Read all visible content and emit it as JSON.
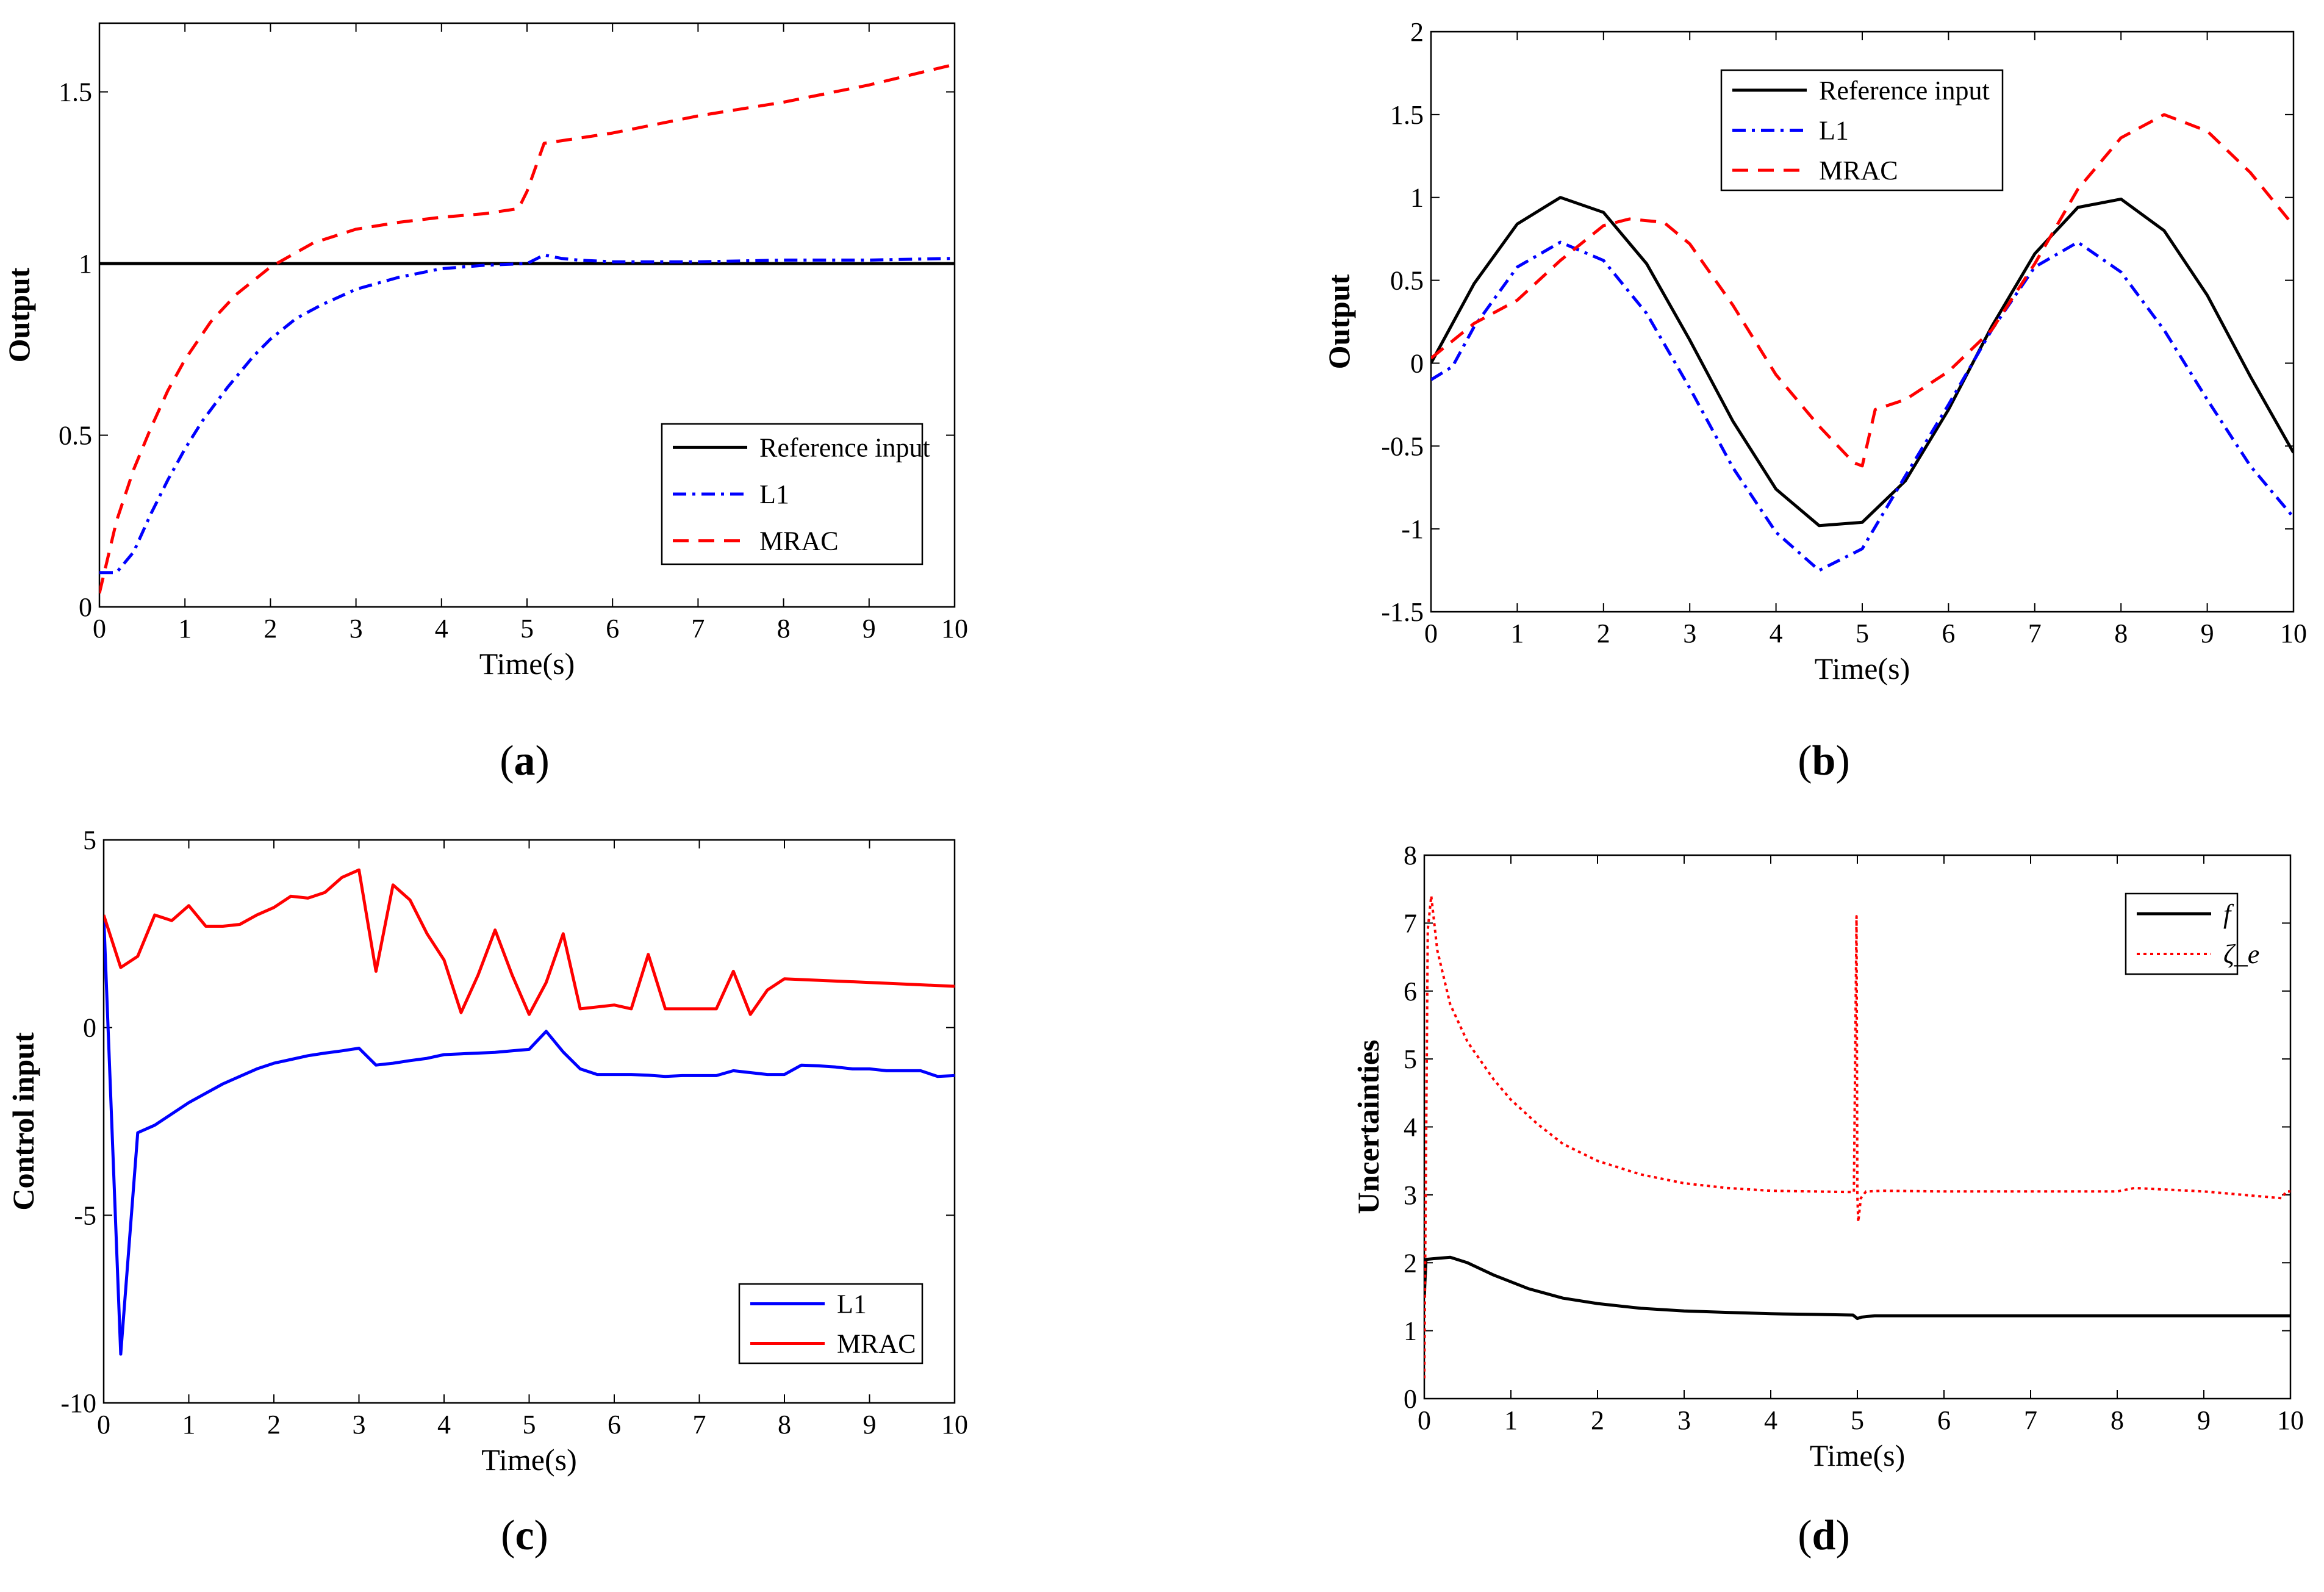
{
  "figure": {
    "caption_style": "(letter)"
  },
  "chart_data": [
    {
      "id": "a",
      "type": "line",
      "caption": "a",
      "xlabel": "Time(s)",
      "ylabel": "Output",
      "xlim": [
        0,
        10
      ],
      "ylim": [
        0,
        1.7
      ],
      "xticks": [
        0,
        1,
        2,
        3,
        4,
        5,
        6,
        7,
        8,
        9,
        10
      ],
      "yticks": [
        0,
        0.5,
        1,
        1.5
      ],
      "legend": "bottom-right",
      "series": [
        {
          "name": "Reference input",
          "color": "#000000",
          "style": "solid",
          "x": [
            0,
            10
          ],
          "y": [
            1,
            1
          ]
        },
        {
          "name": "L1",
          "color": "#0000ff",
          "style": "dashdot",
          "x": [
            0,
            0.2,
            0.4,
            0.6,
            0.8,
            1.0,
            1.2,
            1.5,
            1.8,
            2.0,
            2.3,
            2.6,
            3.0,
            3.5,
            4.0,
            4.5,
            5.0,
            5.2,
            5.4,
            5.6,
            6.0,
            7.0,
            8.0,
            9.0,
            10.0
          ],
          "y": [
            0.1,
            0.1,
            0.16,
            0.27,
            0.37,
            0.46,
            0.54,
            0.64,
            0.73,
            0.78,
            0.84,
            0.88,
            0.925,
            0.96,
            0.985,
            0.995,
            1.0,
            1.025,
            1.015,
            1.01,
            1.005,
            1.005,
            1.01,
            1.01,
            1.015
          ]
        },
        {
          "name": "MRAC",
          "color": "#ff0000",
          "style": "dashed",
          "x": [
            0,
            0.2,
            0.4,
            0.6,
            0.8,
            1.0,
            1.3,
            1.6,
            2.0,
            2.5,
            3.0,
            3.5,
            4.0,
            4.5,
            4.9,
            5.0,
            5.2,
            6.0,
            7.0,
            8.0,
            9.0,
            10.0
          ],
          "y": [
            0.04,
            0.25,
            0.4,
            0.52,
            0.63,
            0.72,
            0.83,
            0.91,
            0.99,
            1.06,
            1.1,
            1.12,
            1.135,
            1.145,
            1.16,
            1.21,
            1.35,
            1.38,
            1.43,
            1.47,
            1.52,
            1.58
          ]
        }
      ]
    },
    {
      "id": "b",
      "type": "line",
      "caption": "b",
      "xlabel": "Time(s)",
      "ylabel": "Output",
      "xlim": [
        0,
        10
      ],
      "ylim": [
        -1.5,
        2
      ],
      "xticks": [
        0,
        1,
        2,
        3,
        4,
        5,
        6,
        7,
        8,
        9,
        10
      ],
      "yticks": [
        -1.5,
        -1,
        -0.5,
        0,
        0.5,
        1,
        1.5,
        2
      ],
      "legend": "top-left",
      "series": [
        {
          "name": "Reference input",
          "color": "#000000",
          "style": "solid",
          "x": [
            0,
            0.5,
            1,
            1.5,
            2,
            2.5,
            3,
            3.5,
            4,
            4.5,
            5,
            5.5,
            6,
            6.5,
            7,
            7.5,
            8,
            8.5,
            9,
            9.5,
            10
          ],
          "y": [
            0,
            0.48,
            0.84,
            1.0,
            0.91,
            0.6,
            0.14,
            -0.35,
            -0.76,
            -0.98,
            -0.96,
            -0.71,
            -0.28,
            0.22,
            0.66,
            0.94,
            0.99,
            0.8,
            0.41,
            -0.08,
            -0.54
          ]
        },
        {
          "name": "L1",
          "color": "#0000ff",
          "style": "dashdot",
          "x": [
            0,
            0.25,
            0.5,
            1,
            1.5,
            2,
            2.5,
            3,
            3.5,
            4,
            4.5,
            5,
            5.5,
            6,
            6.5,
            7,
            7.5,
            8,
            8.5,
            9,
            9.5,
            10
          ],
          "y": [
            -0.1,
            -0.02,
            0.22,
            0.58,
            0.73,
            0.62,
            0.3,
            -0.15,
            -0.63,
            -1.02,
            -1.25,
            -1.12,
            -0.68,
            -0.25,
            0.2,
            0.58,
            0.73,
            0.55,
            0.2,
            -0.22,
            -0.62,
            -0.93
          ]
        },
        {
          "name": "MRAC",
          "color": "#ff0000",
          "style": "dashed",
          "x": [
            0,
            0.5,
            1,
            1.5,
            2,
            2.3,
            2.7,
            3,
            3.5,
            4,
            4.5,
            4.9,
            5.0,
            5.15,
            5.5,
            6,
            6.5,
            7,
            7.5,
            8,
            8.5,
            9,
            9.5,
            10
          ],
          "y": [
            0.03,
            0.24,
            0.38,
            0.62,
            0.83,
            0.87,
            0.85,
            0.72,
            0.35,
            -0.07,
            -0.38,
            -0.6,
            -0.62,
            -0.28,
            -0.22,
            -0.05,
            0.2,
            0.6,
            1.05,
            1.36,
            1.5,
            1.4,
            1.15,
            0.83
          ]
        }
      ]
    },
    {
      "id": "c",
      "type": "line",
      "caption": "c",
      "xlabel": "Time(s)",
      "ylabel": "Control input",
      "xlim": [
        0,
        10
      ],
      "ylim": [
        -10,
        5
      ],
      "xticks": [
        0,
        1,
        2,
        3,
        4,
        5,
        6,
        7,
        8,
        9,
        10
      ],
      "yticks": [
        -10,
        -5,
        0,
        5
      ],
      "legend": "bottom-right",
      "series": [
        {
          "name": "L1",
          "color": "#0000ff",
          "style": "solid",
          "x": [
            0,
            0.2,
            0.4,
            0.6,
            0.8,
            1.0,
            1.2,
            1.4,
            1.6,
            1.8,
            2.0,
            2.2,
            2.4,
            2.6,
            2.8,
            3.0,
            3.2,
            3.4,
            3.6,
            3.8,
            4.0,
            4.2,
            4.4,
            4.6,
            4.8,
            5.0,
            5.2,
            5.4,
            5.6,
            5.8,
            6.0,
            6.2,
            6.4,
            6.6,
            6.8,
            7.0,
            7.2,
            7.4,
            7.6,
            7.8,
            8.0,
            8.2,
            8.4,
            8.6,
            8.8,
            9.0,
            9.2,
            9.4,
            9.6,
            9.8,
            10.0
          ],
          "y": [
            3.0,
            -8.7,
            -2.8,
            -2.6,
            -2.3,
            -2.0,
            -1.75,
            -1.5,
            -1.3,
            -1.1,
            -0.95,
            -0.85,
            -0.75,
            -0.68,
            -0.62,
            -0.55,
            -1.0,
            -0.95,
            -0.88,
            -0.82,
            -0.72,
            -0.7,
            -0.68,
            -0.66,
            -0.62,
            -0.58,
            -0.1,
            -0.65,
            -1.1,
            -1.25,
            -1.25,
            -1.25,
            -1.27,
            -1.3,
            -1.28,
            -1.28,
            -1.28,
            -1.15,
            -1.2,
            -1.25,
            -1.25,
            -1.0,
            -1.02,
            -1.05,
            -1.1,
            -1.1,
            -1.15,
            -1.15,
            -1.15,
            -1.3,
            -1.28
          ]
        },
        {
          "name": "MRAC",
          "color": "#ff0000",
          "style": "solid",
          "x": [
            0,
            0.2,
            0.4,
            0.6,
            0.8,
            1.0,
            1.2,
            1.4,
            1.6,
            1.8,
            2.0,
            2.2,
            2.4,
            2.6,
            2.8,
            3.0,
            3.2,
            3.4,
            3.6,
            3.8,
            4.0,
            4.2,
            4.4,
            4.6,
            4.8,
            5.0,
            5.2,
            5.4,
            5.6,
            5.8,
            6.0,
            6.2,
            6.4,
            6.6,
            6.8,
            7.0,
            7.2,
            7.4,
            7.6,
            7.8,
            8.0,
            9.0,
            10.0
          ],
          "y": [
            3.0,
            1.6,
            1.9,
            3.0,
            2.85,
            3.25,
            2.7,
            2.7,
            2.75,
            3.0,
            3.2,
            3.5,
            3.45,
            3.6,
            4.0,
            4.2,
            1.5,
            3.8,
            3.4,
            2.5,
            1.8,
            0.4,
            1.4,
            2.6,
            1.4,
            0.35,
            1.2,
            2.5,
            0.5,
            0.55,
            0.6,
            0.5,
            1.95,
            0.5,
            0.5,
            0.5,
            0.5,
            1.5,
            0.35,
            1.0,
            1.3,
            1.2,
            1.1
          ]
        }
      ]
    },
    {
      "id": "d",
      "type": "line",
      "caption": "d",
      "xlabel": "Time(s)",
      "ylabel": "Uncertainties",
      "xlim": [
        0,
        10
      ],
      "ylim": [
        0,
        8
      ],
      "xticks": [
        0,
        1,
        2,
        3,
        4,
        5,
        6,
        7,
        8,
        9,
        10
      ],
      "yticks": [
        0,
        1,
        2,
        3,
        4,
        5,
        6,
        7,
        8
      ],
      "legend": "top-right",
      "series": [
        {
          "name": "f",
          "color": "#000000",
          "style": "solid",
          "x": [
            0,
            0.02,
            0.1,
            0.3,
            0.5,
            0.8,
            1.2,
            1.6,
            2.0,
            2.5,
            3.0,
            3.5,
            4.0,
            4.5,
            4.95,
            5.0,
            5.05,
            5.2,
            6.0,
            7.0,
            8.0,
            9.0,
            10.0
          ],
          "y": [
            1.5,
            2.05,
            2.06,
            2.08,
            2.0,
            1.82,
            1.62,
            1.48,
            1.4,
            1.33,
            1.29,
            1.27,
            1.25,
            1.24,
            1.23,
            1.18,
            1.2,
            1.22,
            1.22,
            1.22,
            1.22,
            1.22,
            1.22
          ]
        },
        {
          "name": "ζ_e",
          "color": "#ff0000",
          "style": "dotted",
          "x": [
            0,
            0.04,
            0.08,
            0.15,
            0.3,
            0.5,
            0.8,
            1.0,
            1.3,
            1.6,
            2.0,
            2.5,
            3.0,
            3.5,
            4.0,
            4.5,
            4.96,
            4.99,
            5.0,
            5.01,
            5.04,
            5.1,
            5.3,
            6.0,
            7.0,
            8.0,
            8.2,
            9.0,
            9.9,
            9.95,
            10.0
          ],
          "y": [
            0.3,
            6.9,
            7.4,
            6.6,
            5.8,
            5.25,
            4.7,
            4.4,
            4.05,
            3.75,
            3.5,
            3.3,
            3.17,
            3.1,
            3.06,
            3.05,
            3.04,
            7.1,
            3.0,
            2.6,
            2.95,
            3.05,
            3.06,
            3.05,
            3.05,
            3.05,
            3.1,
            3.05,
            2.95,
            3.05,
            3.05
          ]
        }
      ]
    }
  ]
}
